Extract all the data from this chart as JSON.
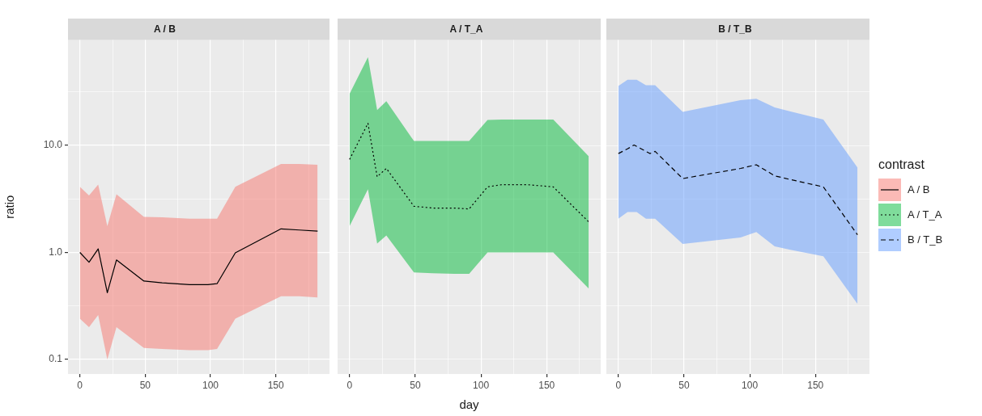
{
  "chart_data": [
    {
      "type": "line",
      "title": "A / B",
      "ylabel": "ratio",
      "log": "y",
      "grid": true,
      "colors": [
        "#f8766d"
      ],
      "xlim": [
        -9.1,
        191.1
      ],
      "ylim": [
        0.073,
        97
      ],
      "xticks": [
        0,
        {
          "value": 25,
          "label": null
        },
        50,
        {
          "value": 75,
          "label": null
        },
        100,
        {
          "value": 125,
          "label": null
        },
        150,
        {
          "value": 175,
          "label": null
        }
      ],
      "yticks": [
        {
          "value": 0.1,
          "label": "0.1"
        },
        {
          "value": 0.316,
          "label": null
        },
        {
          "value": 1,
          "label": "1.0"
        },
        {
          "value": 3.16,
          "label": null
        },
        {
          "value": 10,
          "label": "10.0"
        },
        {
          "value": 31.6,
          "label": null
        }
      ],
      "x": [
        0,
        7,
        14,
        21,
        28,
        49,
        63,
        84,
        98,
        105,
        119,
        154,
        168,
        182
      ],
      "series": [
        {
          "name": "A / B",
          "color": "#000000",
          "line_style": "solid",
          "values": [
            1.0,
            0.81,
            1.08,
            0.42,
            0.85,
            0.54,
            0.52,
            0.5,
            0.5,
            0.51,
            0.99,
            1.66,
            1.62,
            1.58
          ],
          "lower": [
            0.24,
            0.2,
            0.26,
            0.1,
            0.2,
            0.128,
            0.125,
            0.122,
            0.122,
            0.125,
            0.24,
            0.39,
            0.39,
            0.38
          ],
          "upper": [
            4.1,
            3.4,
            4.3,
            1.76,
            3.5,
            2.15,
            2.13,
            2.07,
            2.07,
            2.07,
            4.1,
            6.7,
            6.7,
            6.6
          ]
        }
      ]
    },
    {
      "type": "line",
      "title": "A / T_A",
      "xlabel": "day",
      "log": "y",
      "grid": true,
      "tick_labels": "x",
      "colors": [
        "#00ba38"
      ],
      "xlim": [
        -9.1,
        191.1
      ],
      "ylim": [
        0.073,
        97
      ],
      "xticks": [
        0,
        {
          "value": 25,
          "label": null
        },
        50,
        {
          "value": 75,
          "label": null
        },
        100,
        {
          "value": 125,
          "label": null
        },
        150,
        {
          "value": 175,
          "label": null
        }
      ],
      "yticks": [
        {
          "value": 0.1,
          "label": null
        },
        {
          "value": 0.316,
          "label": null
        },
        {
          "value": 1,
          "label": null
        },
        {
          "value": 3.16,
          "label": null
        },
        {
          "value": 10,
          "label": null
        },
        {
          "value": 31.6,
          "label": null
        }
      ],
      "x": [
        0,
        14,
        21,
        28,
        49,
        63,
        80,
        91,
        105,
        116,
        135,
        155,
        182
      ],
      "series": [
        {
          "name": "A / T_A",
          "color": "#000000",
          "line_style": "dotted",
          "values": [
            7.4,
            16.1,
            5.1,
            6.1,
            2.7,
            2.6,
            2.6,
            2.55,
            4.1,
            4.3,
            4.3,
            4.1,
            1.93
          ],
          "lower": [
            1.76,
            3.9,
            1.21,
            1.44,
            0.65,
            0.64,
            0.63,
            0.63,
            1.0,
            1.0,
            1.0,
            1.0,
            0.46
          ],
          "upper": [
            30.3,
            66.8,
            21.4,
            25.9,
            11.0,
            11.0,
            11.0,
            11.0,
            17.3,
            17.5,
            17.5,
            17.5,
            7.9
          ]
        }
      ]
    },
    {
      "type": "line",
      "title": "B / T_B",
      "log": "y",
      "grid": true,
      "tick_labels": "x",
      "legend": "right",
      "legend_title": "contrast",
      "colors": [
        "#619cff"
      ],
      "xlim": [
        -9.1,
        191.1
      ],
      "ylim": [
        0.073,
        97
      ],
      "xticks": [
        0,
        {
          "value": 25,
          "label": null
        },
        50,
        {
          "value": 75,
          "label": null
        },
        100,
        {
          "value": 125,
          "label": null
        },
        150,
        {
          "value": 175,
          "label": null
        }
      ],
      "yticks": [
        {
          "value": 0.1,
          "label": null
        },
        {
          "value": 0.316,
          "label": null
        },
        {
          "value": 1,
          "label": null
        },
        {
          "value": 3.16,
          "label": null
        },
        {
          "value": 10,
          "label": null
        },
        {
          "value": 31.6,
          "label": null
        }
      ],
      "x": [
        0,
        7,
        12,
        14,
        21,
        24,
        28,
        49,
        93,
        105,
        119,
        131,
        156,
        182
      ],
      "series": [
        {
          "name": "B / T_B",
          "color": "#000000",
          "line_style": "dashed",
          "values": [
            8.4,
            9.3,
            10.1,
            9.8,
            8.8,
            8.4,
            8.8,
            4.9,
            6.1,
            6.6,
            5.2,
            4.8,
            4.1,
            1.46
          ],
          "lower": [
            2.07,
            2.39,
            2.39,
            2.39,
            2.07,
            2.07,
            2.07,
            1.2,
            1.38,
            1.55,
            1.14,
            1.06,
            0.92,
            0.33
          ],
          "upper": [
            36.0,
            41.1,
            41.1,
            41.1,
            36.6,
            36.6,
            36.6,
            20.6,
            26.5,
            27.3,
            22.7,
            20.8,
            17.5,
            6.2
          ]
        }
      ]
    }
  ]
}
